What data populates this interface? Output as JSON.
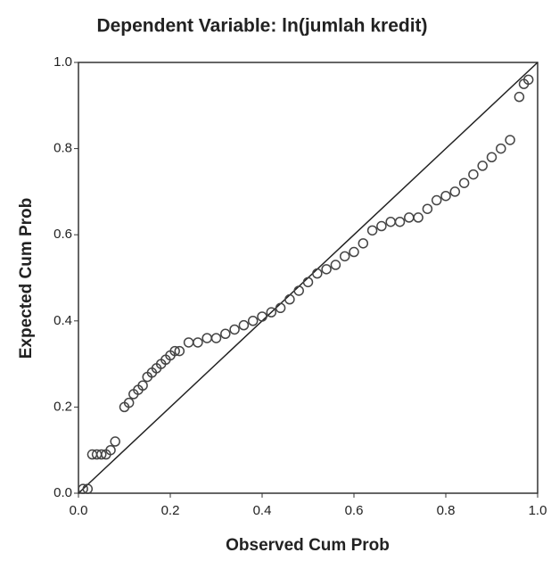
{
  "chart_data": {
    "type": "scatter",
    "title": "Dependent Variable: ln(jumlah kredit)",
    "x_label": "Observed Cum Prob",
    "y_label": "Expected Cum Prob",
    "color": "#444444",
    "xlim": [
      0,
      1
    ],
    "ylim": [
      0,
      1
    ],
    "xticks": [
      {
        "value": 0,
        "label": "0.0"
      },
      {
        "value": 0.2,
        "label": "0.2"
      },
      {
        "value": 0.4,
        "label": "0.4"
      },
      {
        "value": 0.6,
        "label": "0.6"
      },
      {
        "value": 0.8,
        "label": "0.8"
      },
      {
        "value": 1,
        "label": "1.0"
      }
    ],
    "yticks": [
      {
        "value": 0,
        "label": "0.0"
      },
      {
        "value": 0.2,
        "label": "0.2"
      },
      {
        "value": 0.4,
        "label": "0.4"
      },
      {
        "value": 0.6,
        "label": "0.6"
      },
      {
        "value": 0.8,
        "label": "0.8"
      },
      {
        "value": 1,
        "label": "1.0"
      }
    ],
    "x": [
      0.01,
      0.02,
      0.03,
      0.04,
      0.05,
      0.06,
      0.07,
      0.08,
      0.1,
      0.11,
      0.12,
      0.13,
      0.14,
      0.15,
      0.16,
      0.17,
      0.18,
      0.19,
      0.2,
      0.21,
      0.22,
      0.24,
      0.26,
      0.28,
      0.3,
      0.32,
      0.34,
      0.36,
      0.38,
      0.4,
      0.42,
      0.44,
      0.46,
      0.48,
      0.5,
      0.52,
      0.54,
      0.56,
      0.58,
      0.6,
      0.62,
      0.64,
      0.66,
      0.68,
      0.7,
      0.72,
      0.74,
      0.76,
      0.78,
      0.8,
      0.82,
      0.84,
      0.86,
      0.88,
      0.9,
      0.92,
      0.94,
      0.96,
      0.97,
      0.98
    ],
    "values": [
      0.01,
      0.01,
      0.09,
      0.09,
      0.09,
      0.09,
      0.1,
      0.12,
      0.2,
      0.21,
      0.23,
      0.24,
      0.25,
      0.27,
      0.28,
      0.29,
      0.3,
      0.31,
      0.32,
      0.33,
      0.33,
      0.35,
      0.35,
      0.36,
      0.36,
      0.37,
      0.38,
      0.39,
      0.4,
      0.41,
      0.42,
      0.43,
      0.45,
      0.47,
      0.49,
      0.51,
      0.52,
      0.53,
      0.55,
      0.56,
      0.58,
      0.61,
      0.62,
      0.63,
      0.63,
      0.64,
      0.64,
      0.66,
      0.68,
      0.69,
      0.7,
      0.72,
      0.74,
      0.76,
      0.78,
      0.8,
      0.82,
      0.92,
      0.95,
      0.96
    ]
  }
}
